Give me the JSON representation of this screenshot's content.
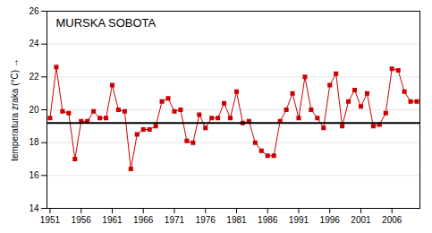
{
  "chart_data": {
    "type": "line",
    "title": "MURSKA SOBOTA",
    "y_label": "temperatura zraka (°C)",
    "x": [
      1951,
      1952,
      1953,
      1954,
      1955,
      1956,
      1957,
      1958,
      1959,
      1960,
      1961,
      1962,
      1963,
      1964,
      1965,
      1966,
      1967,
      1968,
      1969,
      1970,
      1971,
      1972,
      1973,
      1974,
      1975,
      1976,
      1977,
      1978,
      1979,
      1980,
      1981,
      1982,
      1983,
      1984,
      1985,
      1986,
      1987,
      1988,
      1989,
      1990,
      1991,
      1992,
      1993,
      1994,
      1995,
      1996,
      1997,
      1998,
      1999,
      2000,
      2001,
      2002,
      2003,
      2004,
      2005,
      2006,
      2007,
      2008,
      2009,
      2010
    ],
    "values": [
      19.5,
      22.6,
      19.9,
      19.8,
      17.0,
      19.3,
      19.3,
      19.9,
      19.5,
      19.5,
      21.5,
      20.0,
      19.9,
      16.4,
      18.5,
      18.8,
      18.8,
      19.0,
      20.5,
      20.7,
      19.9,
      20.0,
      18.1,
      18.0,
      19.7,
      18.9,
      19.5,
      19.5,
      20.4,
      19.5,
      21.1,
      19.2,
      19.3,
      18.0,
      17.5,
      17.2,
      17.2,
      19.3,
      20.0,
      21.0,
      19.5,
      22.0,
      20.0,
      19.5,
      18.9,
      21.5,
      22.2,
      19.0,
      20.5,
      21.2,
      20.2,
      21.0,
      19.0,
      19.1,
      19.8,
      22.5,
      22.4,
      21.1,
      20.5,
      20.5
    ],
    "color": "#cc0000",
    "marker": "square",
    "mean_line": 19.2,
    "xlim": [
      1950.5,
      2010.5
    ],
    "xticks": [
      1951,
      1956,
      1961,
      1966,
      1971,
      1976,
      1981,
      1986,
      1991,
      1996,
      2001,
      2006
    ],
    "ylim": [
      14,
      26
    ],
    "yticks": [
      14,
      16,
      18,
      20,
      22,
      24,
      26
    ],
    "grid": true
  }
}
